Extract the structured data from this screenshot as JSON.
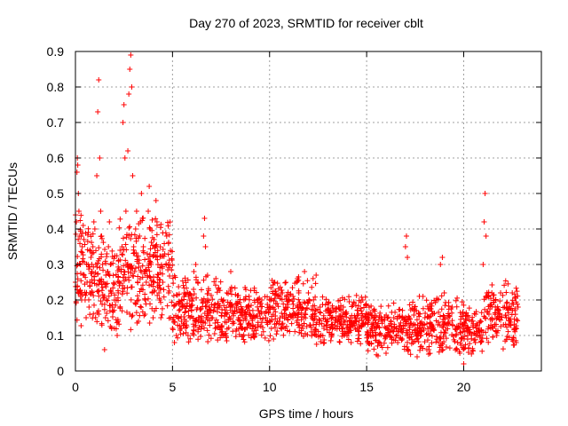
{
  "chart_data": {
    "type": "scatter",
    "title": "Day 270 of 2023, SRMTID for receiver cblt",
    "xlabel": "GPS time / hours",
    "ylabel": "SRMTID / TECUs",
    "xlim": [
      0,
      24
    ],
    "ylim": [
      0,
      0.9
    ],
    "xticks": [
      0,
      5,
      10,
      15,
      20
    ],
    "xtick_labels": [
      "0",
      "5",
      "10",
      "15",
      "20"
    ],
    "yticks": [
      0,
      0.1,
      0.2,
      0.3,
      0.4,
      0.5,
      0.6,
      0.7,
      0.8,
      0.9
    ],
    "ytick_labels": [
      "0",
      "0.1",
      "0.2",
      "0.3",
      "0.4",
      "0.5",
      "0.6",
      "0.7",
      "0.8",
      "0.9"
    ],
    "grid": true,
    "marker": "+",
    "colors": {
      "series": "#ff0000",
      "grid": "#a0a0a0",
      "axis": "#000000"
    },
    "series": [
      {
        "name": "SRMTID",
        "points": [
          [
            0.0,
            0.25
          ],
          [
            0.05,
            0.42
          ],
          [
            0.08,
            0.56
          ],
          [
            0.1,
            0.6
          ],
          [
            0.12,
            0.58
          ],
          [
            0.15,
            0.5
          ],
          [
            0.18,
            0.45
          ],
          [
            0.22,
            0.38
          ],
          [
            0.25,
            0.3
          ],
          [
            0.3,
            0.22
          ],
          [
            0.35,
            0.35
          ],
          [
            0.4,
            0.41
          ],
          [
            0.45,
            0.27
          ],
          [
            0.5,
            0.2
          ],
          [
            0.55,
            0.15
          ],
          [
            0.6,
            0.25
          ],
          [
            0.65,
            0.3
          ],
          [
            0.7,
            0.18
          ],
          [
            0.75,
            0.22
          ],
          [
            0.8,
            0.32
          ],
          [
            0.85,
            0.28
          ],
          [
            0.9,
            0.35
          ],
          [
            0.95,
            0.42
          ],
          [
            1.0,
            0.4
          ],
          [
            1.05,
            0.3
          ],
          [
            1.1,
            0.55
          ],
          [
            1.15,
            0.73
          ],
          [
            1.2,
            0.82
          ],
          [
            1.25,
            0.6
          ],
          [
            1.3,
            0.45
          ],
          [
            1.35,
            0.38
          ],
          [
            1.4,
            0.3
          ],
          [
            1.45,
            0.25
          ],
          [
            1.5,
            0.06
          ],
          [
            1.55,
            0.15
          ],
          [
            1.6,
            0.2
          ],
          [
            1.65,
            0.28
          ],
          [
            1.7,
            0.35
          ],
          [
            1.75,
            0.42
          ],
          [
            1.8,
            0.3
          ],
          [
            1.85,
            0.22
          ],
          [
            1.9,
            0.18
          ],
          [
            2.0,
            0.12
          ],
          [
            2.1,
            0.2
          ],
          [
            2.15,
            0.1
          ],
          [
            2.2,
            0.14
          ],
          [
            2.25,
            0.25
          ],
          [
            2.3,
            0.18
          ],
          [
            2.35,
            0.28
          ],
          [
            2.4,
            0.35
          ],
          [
            2.45,
            0.7
          ],
          [
            2.5,
            0.75
          ],
          [
            2.55,
            0.6
          ],
          [
            2.6,
            0.45
          ],
          [
            2.65,
            0.3
          ],
          [
            2.7,
            0.62
          ],
          [
            2.75,
            0.78
          ],
          [
            2.8,
            0.85
          ],
          [
            2.85,
            0.89
          ],
          [
            2.9,
            0.8
          ],
          [
            2.95,
            0.55
          ],
          [
            3.0,
            0.35
          ],
          [
            3.05,
            0.28
          ],
          [
            3.1,
            0.4
          ],
          [
            3.15,
            0.45
          ],
          [
            3.2,
            0.25
          ],
          [
            3.25,
            0.2
          ],
          [
            3.3,
            0.38
          ],
          [
            3.35,
            0.42
          ],
          [
            3.4,
            0.5
          ],
          [
            3.45,
            0.43
          ],
          [
            3.5,
            0.35
          ],
          [
            3.55,
            0.28
          ],
          [
            3.6,
            0.2
          ],
          [
            3.65,
            0.25
          ],
          [
            3.7,
            0.33
          ],
          [
            3.75,
            0.45
          ],
          [
            3.8,
            0.52
          ],
          [
            3.85,
            0.4
          ],
          [
            3.9,
            0.3
          ],
          [
            3.95,
            0.22
          ],
          [
            4.0,
            0.15
          ],
          [
            4.05,
            0.25
          ],
          [
            4.1,
            0.35
          ],
          [
            4.15,
            0.48
          ],
          [
            4.2,
            0.42
          ],
          [
            4.25,
            0.3
          ],
          [
            4.3,
            0.22
          ],
          [
            4.35,
            0.2
          ],
          [
            4.4,
            0.15
          ],
          [
            4.5,
            0.25
          ],
          [
            4.6,
            0.33
          ],
          [
            4.7,
            0.38
          ],
          [
            4.8,
            0.22
          ],
          [
            4.9,
            0.15
          ],
          [
            5.0,
            0.12
          ],
          [
            5.1,
            0.08
          ],
          [
            5.2,
            0.1
          ],
          [
            5.3,
            0.15
          ],
          [
            5.4,
            0.12
          ],
          [
            5.5,
            0.18
          ],
          [
            5.6,
            0.22
          ],
          [
            5.7,
            0.14
          ],
          [
            5.8,
            0.1
          ],
          [
            5.9,
            0.15
          ],
          [
            6.0,
            0.2
          ],
          [
            6.1,
            0.28
          ],
          [
            6.2,
            0.3
          ],
          [
            6.3,
            0.25
          ],
          [
            6.4,
            0.15
          ],
          [
            6.5,
            0.2
          ],
          [
            6.6,
            0.38
          ],
          [
            6.65,
            0.43
          ],
          [
            6.7,
            0.35
          ],
          [
            6.8,
            0.2
          ],
          [
            6.9,
            0.18
          ],
          [
            7.0,
            0.15
          ],
          [
            7.2,
            0.12
          ],
          [
            7.4,
            0.18
          ],
          [
            7.6,
            0.1
          ],
          [
            7.8,
            0.22
          ],
          [
            8.0,
            0.28
          ],
          [
            8.2,
            0.17
          ],
          [
            8.4,
            0.15
          ],
          [
            8.6,
            0.12
          ],
          [
            8.8,
            0.18
          ],
          [
            9.0,
            0.16
          ],
          [
            9.2,
            0.1
          ],
          [
            9.4,
            0.13
          ],
          [
            9.6,
            0.2
          ],
          [
            9.8,
            0.15
          ],
          [
            10.0,
            0.18
          ],
          [
            10.2,
            0.09
          ],
          [
            10.4,
            0.14
          ],
          [
            10.6,
            0.22
          ],
          [
            10.8,
            0.12
          ],
          [
            11.0,
            0.2
          ],
          [
            11.2,
            0.15
          ],
          [
            11.4,
            0.25
          ],
          [
            11.6,
            0.18
          ],
          [
            11.8,
            0.28
          ],
          [
            12.0,
            0.22
          ],
          [
            12.2,
            0.15
          ],
          [
            12.4,
            0.1
          ],
          [
            12.6,
            0.18
          ],
          [
            12.8,
            0.12
          ],
          [
            13.0,
            0.14
          ],
          [
            13.2,
            0.1
          ],
          [
            13.4,
            0.15
          ],
          [
            13.6,
            0.12
          ],
          [
            13.8,
            0.18
          ],
          [
            14.0,
            0.13
          ],
          [
            14.2,
            0.08
          ],
          [
            14.4,
            0.15
          ],
          [
            14.6,
            0.12
          ],
          [
            14.8,
            0.2
          ],
          [
            15.0,
            0.15
          ],
          [
            15.2,
            0.1
          ],
          [
            15.4,
            0.12
          ],
          [
            15.6,
            0.08
          ],
          [
            15.8,
            0.14
          ],
          [
            16.0,
            0.05
          ],
          [
            16.2,
            0.1
          ],
          [
            16.4,
            0.15
          ],
          [
            16.6,
            0.08
          ],
          [
            16.8,
            0.12
          ],
          [
            17.0,
            0.35
          ],
          [
            17.05,
            0.38
          ],
          [
            17.1,
            0.32
          ],
          [
            17.2,
            0.15
          ],
          [
            17.4,
            0.08
          ],
          [
            17.6,
            0.04
          ],
          [
            17.8,
            0.1
          ],
          [
            18.0,
            0.15
          ],
          [
            18.2,
            0.06
          ],
          [
            18.4,
            0.12
          ],
          [
            18.6,
            0.2
          ],
          [
            18.8,
            0.3
          ],
          [
            18.9,
            0.32
          ],
          [
            19.0,
            0.22
          ],
          [
            19.2,
            0.15
          ],
          [
            19.4,
            0.18
          ],
          [
            19.6,
            0.1
          ],
          [
            19.8,
            0.05
          ],
          [
            20.0,
            0.02
          ],
          [
            20.2,
            0.1
          ],
          [
            20.4,
            0.14
          ],
          [
            20.6,
            0.08
          ],
          [
            20.8,
            0.12
          ],
          [
            21.0,
            0.3
          ],
          [
            21.05,
            0.42
          ],
          [
            21.1,
            0.5
          ],
          [
            21.15,
            0.38
          ],
          [
            21.2,
            0.22
          ],
          [
            21.3,
            0.16
          ],
          [
            21.5,
            0.12
          ],
          [
            21.7,
            0.1
          ],
          [
            21.9,
            0.22
          ],
          [
            22.1,
            0.18
          ],
          [
            22.3,
            0.15
          ],
          [
            22.5,
            0.22
          ],
          [
            22.6,
            0.12
          ],
          [
            22.7,
            0.08
          ],
          [
            22.8,
            0.18
          ]
        ],
        "dense_bands": [
          {
            "x_range": [
              0.0,
              1.0
            ],
            "y_range": [
              0.12,
              0.45
            ],
            "count": 90
          },
          {
            "x_range": [
              1.0,
              2.2
            ],
            "y_range": [
              0.1,
              0.4
            ],
            "count": 100
          },
          {
            "x_range": [
              2.2,
              3.2
            ],
            "y_range": [
              0.1,
              0.45
            ],
            "count": 90
          },
          {
            "x_range": [
              3.2,
              5.0
            ],
            "y_range": [
              0.12,
              0.45
            ],
            "count": 150
          },
          {
            "x_range": [
              5.0,
              7.5
            ],
            "y_range": [
              0.07,
              0.28
            ],
            "count": 200
          },
          {
            "x_range": [
              7.5,
              10.0
            ],
            "y_range": [
              0.07,
              0.25
            ],
            "count": 200
          },
          {
            "x_range": [
              10.0,
              12.5
            ],
            "y_range": [
              0.07,
              0.28
            ],
            "count": 200
          },
          {
            "x_range": [
              12.5,
              15.0
            ],
            "y_range": [
              0.06,
              0.22
            ],
            "count": 200
          },
          {
            "x_range": [
              15.0,
              17.5
            ],
            "y_range": [
              0.04,
              0.2
            ],
            "count": 200
          },
          {
            "x_range": [
              17.5,
              20.0
            ],
            "y_range": [
              0.03,
              0.22
            ],
            "count": 200
          },
          {
            "x_range": [
              20.0,
              21.0
            ],
            "y_range": [
              0.04,
              0.18
            ],
            "count": 80
          },
          {
            "x_range": [
              21.0,
              22.8
            ],
            "y_range": [
              0.06,
              0.26
            ],
            "count": 140
          }
        ]
      }
    ]
  }
}
